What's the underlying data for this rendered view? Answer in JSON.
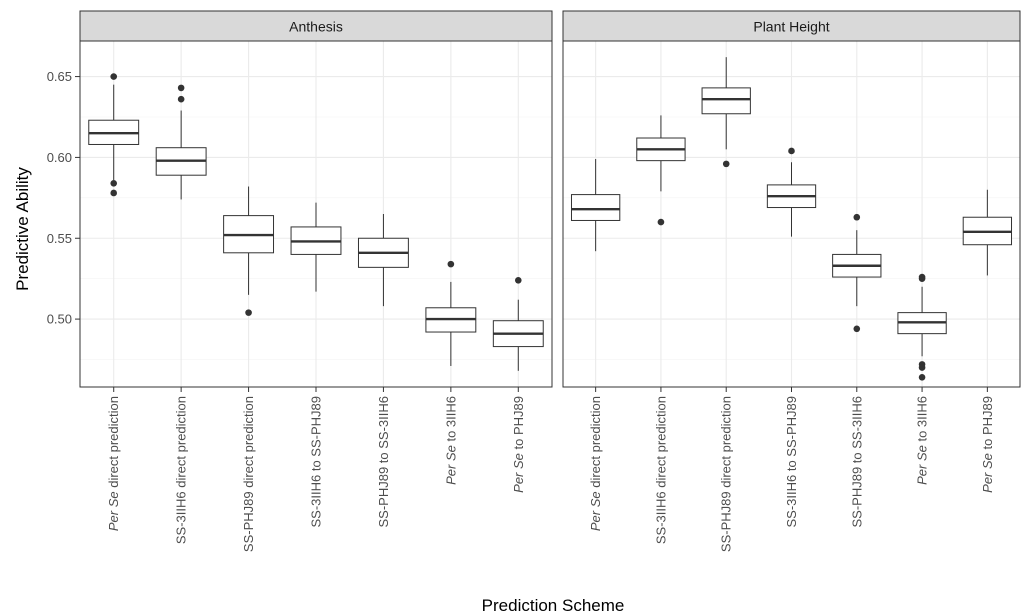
{
  "chart_data": {
    "type": "boxplot",
    "xlabel": "Prediction Scheme",
    "ylabel": "Predictive Ability",
    "ylim": [
      0.458,
      0.672
    ],
    "yticks": [
      "0.50",
      "0.55",
      "0.60",
      "0.65"
    ],
    "ytick_values": [
      0.5,
      0.55,
      0.6,
      0.65
    ],
    "grid": true,
    "categories": [
      {
        "label": "direct prediction",
        "prefix": "Per Se"
      },
      {
        "label": "SS-3IIH6 direct prediction",
        "prefix": ""
      },
      {
        "label": "SS-PHJ89 direct prediction",
        "prefix": ""
      },
      {
        "label": "SS-3IIH6 to SS-PHJ89",
        "prefix": ""
      },
      {
        "label": "SS-PHJ89 to SS-3IIH6",
        "prefix": ""
      },
      {
        "label": "to 3IIH6",
        "prefix": "Per Se"
      },
      {
        "label": "to PHJ89",
        "prefix": "Per Se"
      }
    ],
    "panels": [
      {
        "title": "Anthesis",
        "boxes": [
          {
            "q1": 0.608,
            "median": 0.615,
            "q3": 0.623,
            "whislo": 0.586,
            "whishi": 0.645,
            "outliers": [
              0.65,
              0.584,
              0.578
            ]
          },
          {
            "q1": 0.589,
            "median": 0.598,
            "q3": 0.606,
            "whislo": 0.574,
            "whishi": 0.629,
            "outliers": [
              0.643,
              0.636
            ]
          },
          {
            "q1": 0.541,
            "median": 0.552,
            "q3": 0.564,
            "whislo": 0.515,
            "whishi": 0.582,
            "outliers": [
              0.504
            ]
          },
          {
            "q1": 0.54,
            "median": 0.548,
            "q3": 0.557,
            "whislo": 0.517,
            "whishi": 0.572,
            "outliers": []
          },
          {
            "q1": 0.532,
            "median": 0.541,
            "q3": 0.55,
            "whislo": 0.508,
            "whishi": 0.565,
            "outliers": []
          },
          {
            "q1": 0.492,
            "median": 0.5,
            "q3": 0.507,
            "whislo": 0.471,
            "whishi": 0.523,
            "outliers": [
              0.534
            ]
          },
          {
            "q1": 0.483,
            "median": 0.491,
            "q3": 0.499,
            "whislo": 0.468,
            "whishi": 0.512,
            "outliers": [
              0.524
            ]
          }
        ]
      },
      {
        "title": "Plant Height",
        "boxes": [
          {
            "q1": 0.561,
            "median": 0.568,
            "q3": 0.577,
            "whislo": 0.542,
            "whishi": 0.599,
            "outliers": []
          },
          {
            "q1": 0.598,
            "median": 0.605,
            "q3": 0.612,
            "whislo": 0.579,
            "whishi": 0.626,
            "outliers": [
              0.56
            ]
          },
          {
            "q1": 0.627,
            "median": 0.636,
            "q3": 0.643,
            "whislo": 0.605,
            "whishi": 0.662,
            "outliers": [
              0.596
            ]
          },
          {
            "q1": 0.569,
            "median": 0.576,
            "q3": 0.583,
            "whislo": 0.551,
            "whishi": 0.597,
            "outliers": [
              0.604
            ]
          },
          {
            "q1": 0.526,
            "median": 0.533,
            "q3": 0.54,
            "whislo": 0.508,
            "whishi": 0.555,
            "outliers": [
              0.563,
              0.494
            ]
          },
          {
            "q1": 0.491,
            "median": 0.498,
            "q3": 0.504,
            "whislo": 0.477,
            "whishi": 0.52,
            "outliers": [
              0.526,
              0.525,
              0.472,
              0.47,
              0.464
            ]
          },
          {
            "q1": 0.546,
            "median": 0.554,
            "q3": 0.563,
            "whislo": 0.527,
            "whishi": 0.58,
            "outliers": []
          }
        ]
      }
    ]
  }
}
